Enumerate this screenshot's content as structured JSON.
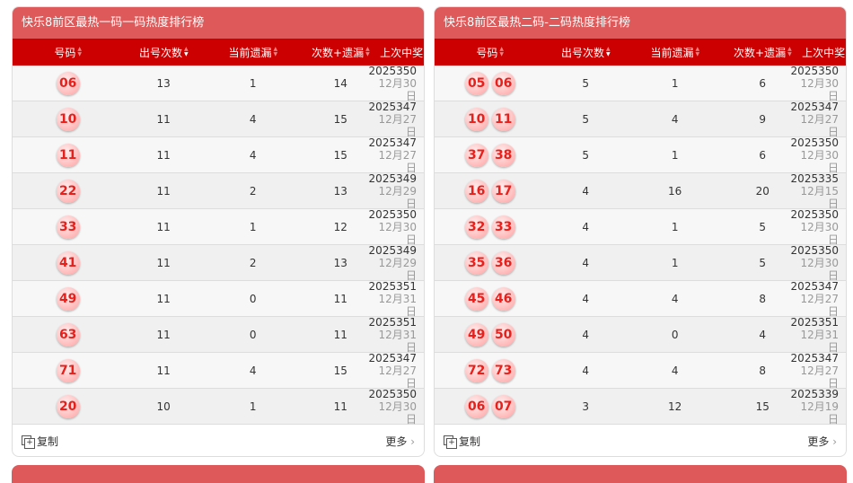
{
  "panels": [
    {
      "title": "快乐8前区最热一码一码热度排行榜",
      "headers": [
        "号码",
        "出号次数",
        "当前遗漏",
        "次数+遗漏",
        "上次中奖"
      ],
      "rows": [
        {
          "balls": [
            "06"
          ],
          "count": "13",
          "miss": "1",
          "sum": "14",
          "issue": "2025350",
          "date": "12月30日"
        },
        {
          "balls": [
            "10"
          ],
          "count": "11",
          "miss": "4",
          "sum": "15",
          "issue": "2025347",
          "date": "12月27日"
        },
        {
          "balls": [
            "11"
          ],
          "count": "11",
          "miss": "4",
          "sum": "15",
          "issue": "2025347",
          "date": "12月27日"
        },
        {
          "balls": [
            "22"
          ],
          "count": "11",
          "miss": "2",
          "sum": "13",
          "issue": "2025349",
          "date": "12月29日"
        },
        {
          "balls": [
            "33"
          ],
          "count": "11",
          "miss": "1",
          "sum": "12",
          "issue": "2025350",
          "date": "12月30日"
        },
        {
          "balls": [
            "41"
          ],
          "count": "11",
          "miss": "2",
          "sum": "13",
          "issue": "2025349",
          "date": "12月29日"
        },
        {
          "balls": [
            "49"
          ],
          "count": "11",
          "miss": "0",
          "sum": "11",
          "issue": "2025351",
          "date": "12月31日"
        },
        {
          "balls": [
            "63"
          ],
          "count": "11",
          "miss": "0",
          "sum": "11",
          "issue": "2025351",
          "date": "12月31日"
        },
        {
          "balls": [
            "71"
          ],
          "count": "11",
          "miss": "4",
          "sum": "15",
          "issue": "2025347",
          "date": "12月27日"
        },
        {
          "balls": [
            "20"
          ],
          "count": "10",
          "miss": "1",
          "sum": "11",
          "issue": "2025350",
          "date": "12月30日"
        }
      ],
      "copy": "复制",
      "more": "更多"
    },
    {
      "title": "快乐8前区最热二码-二码热度排行榜",
      "headers": [
        "号码",
        "出号次数",
        "当前遗漏",
        "次数+遗漏",
        "上次中奖"
      ],
      "rows": [
        {
          "balls": [
            "05",
            "06"
          ],
          "count": "5",
          "miss": "1",
          "sum": "6",
          "issue": "2025350",
          "date": "12月30日"
        },
        {
          "balls": [
            "10",
            "11"
          ],
          "count": "5",
          "miss": "4",
          "sum": "9",
          "issue": "2025347",
          "date": "12月27日"
        },
        {
          "balls": [
            "37",
            "38"
          ],
          "count": "5",
          "miss": "1",
          "sum": "6",
          "issue": "2025350",
          "date": "12月30日"
        },
        {
          "balls": [
            "16",
            "17"
          ],
          "count": "4",
          "miss": "16",
          "sum": "20",
          "issue": "2025335",
          "date": "12月15日"
        },
        {
          "balls": [
            "32",
            "33"
          ],
          "count": "4",
          "miss": "1",
          "sum": "5",
          "issue": "2025350",
          "date": "12月30日"
        },
        {
          "balls": [
            "35",
            "36"
          ],
          "count": "4",
          "miss": "1",
          "sum": "5",
          "issue": "2025350",
          "date": "12月30日"
        },
        {
          "balls": [
            "45",
            "46"
          ],
          "count": "4",
          "miss": "4",
          "sum": "8",
          "issue": "2025347",
          "date": "12月27日"
        },
        {
          "balls": [
            "49",
            "50"
          ],
          "count": "4",
          "miss": "0",
          "sum": "4",
          "issue": "2025351",
          "date": "12月31日"
        },
        {
          "balls": [
            "72",
            "73"
          ],
          "count": "4",
          "miss": "4",
          "sum": "8",
          "issue": "2025347",
          "date": "12月27日"
        },
        {
          "balls": [
            "06",
            "07"
          ],
          "count": "3",
          "miss": "12",
          "sum": "15",
          "issue": "2025339",
          "date": "12月19日"
        }
      ],
      "copy": "复制",
      "more": "更多"
    }
  ],
  "colors": {
    "title_bg": "#de5a5a",
    "header_bg": "#cc0000",
    "ball_text": "#e8201c"
  }
}
